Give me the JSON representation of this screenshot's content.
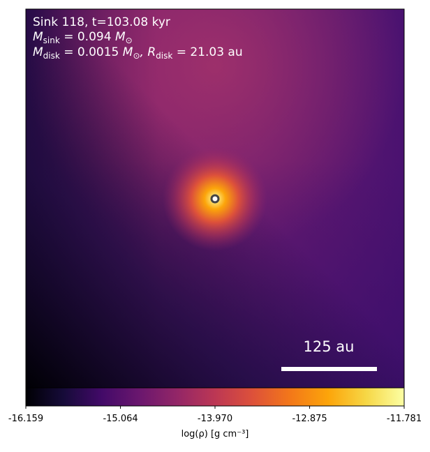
{
  "chart_data": {
    "type": "density-map",
    "annotations": [
      {
        "text": "Sink 118, t=103.08 kyr"
      },
      {
        "parts": [
          {
            "text": "M"
          },
          {
            "text": "sink",
            "sub": true
          },
          {
            "text": " = 0.094 "
          },
          {
            "text": "M"
          },
          {
            "text": "⊙",
            "sub": true
          }
        ]
      },
      {
        "parts": [
          {
            "text": "M"
          },
          {
            "text": "disk",
            "sub": true
          },
          {
            "text": " = 0.0015 "
          },
          {
            "text": "M"
          },
          {
            "text": "⊙",
            "sub": true
          },
          {
            "text": ", "
          },
          {
            "text": "R"
          },
          {
            "text": "disk",
            "sub": true
          },
          {
            "text": " = 21.03 au"
          }
        ]
      }
    ],
    "scale_bar_label": "125 au",
    "colorbar": {
      "label": "log(ρ) [g cm⁻³]",
      "colormap": "inferno",
      "xlim": [
        -16.159,
        -11.781
      ],
      "xticks": [
        -16.159,
        -15.064,
        {
          "value": -13.97,
          "label": "-13.970"
        },
        -12.875,
        -11.781
      ]
    }
  }
}
